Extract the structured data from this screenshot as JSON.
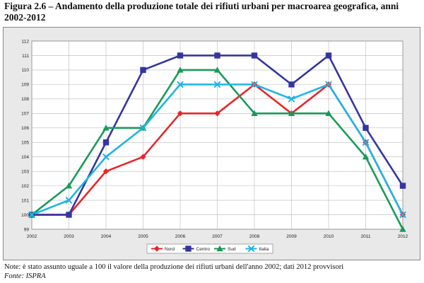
{
  "figure": {
    "title": "Figura 2.6 – Andamento della produzione totale dei rifiuti urbani per macroarea geografica, anni 2002-2012",
    "note": "Note: è stato assunto uguale a 100 il valore della produzione dei rifiuti urbani dell'anno 2002; dati 2012 provvisori",
    "source": "Fonte: ISPRA"
  },
  "chart_data": {
    "type": "line",
    "title": "",
    "xlabel": "",
    "ylabel": "",
    "x": [
      "2002",
      "2003",
      "2004",
      "2005",
      "2006",
      "2007",
      "2008",
      "2009",
      "2010",
      "2011",
      "2012"
    ],
    "ylim": [
      99,
      112
    ],
    "yticks": [
      99,
      100,
      101,
      102,
      103,
      104,
      105,
      106,
      107,
      108,
      109,
      110,
      111,
      112
    ],
    "grid": true,
    "legend_position": "bottom",
    "series": [
      {
        "name": "Nord",
        "color": "#e8262b",
        "marker": "diamond",
        "values": [
          100,
          100,
          103,
          104,
          107,
          107,
          109,
          107,
          109,
          105,
          100
        ]
      },
      {
        "name": "Centro",
        "color": "#3535a0",
        "marker": "square",
        "values": [
          100,
          100,
          105,
          110,
          111,
          111,
          111,
          109,
          111,
          106,
          102
        ]
      },
      {
        "name": "Sud",
        "color": "#1a9a5a",
        "marker": "triangle",
        "values": [
          100,
          102,
          106,
          106,
          110,
          110,
          107,
          107,
          107,
          104,
          99
        ]
      },
      {
        "name": "Italia",
        "color": "#1eb4e6",
        "marker": "x",
        "values": [
          100,
          101,
          104,
          106,
          109,
          109,
          109,
          108,
          109,
          105,
          100
        ]
      }
    ]
  }
}
